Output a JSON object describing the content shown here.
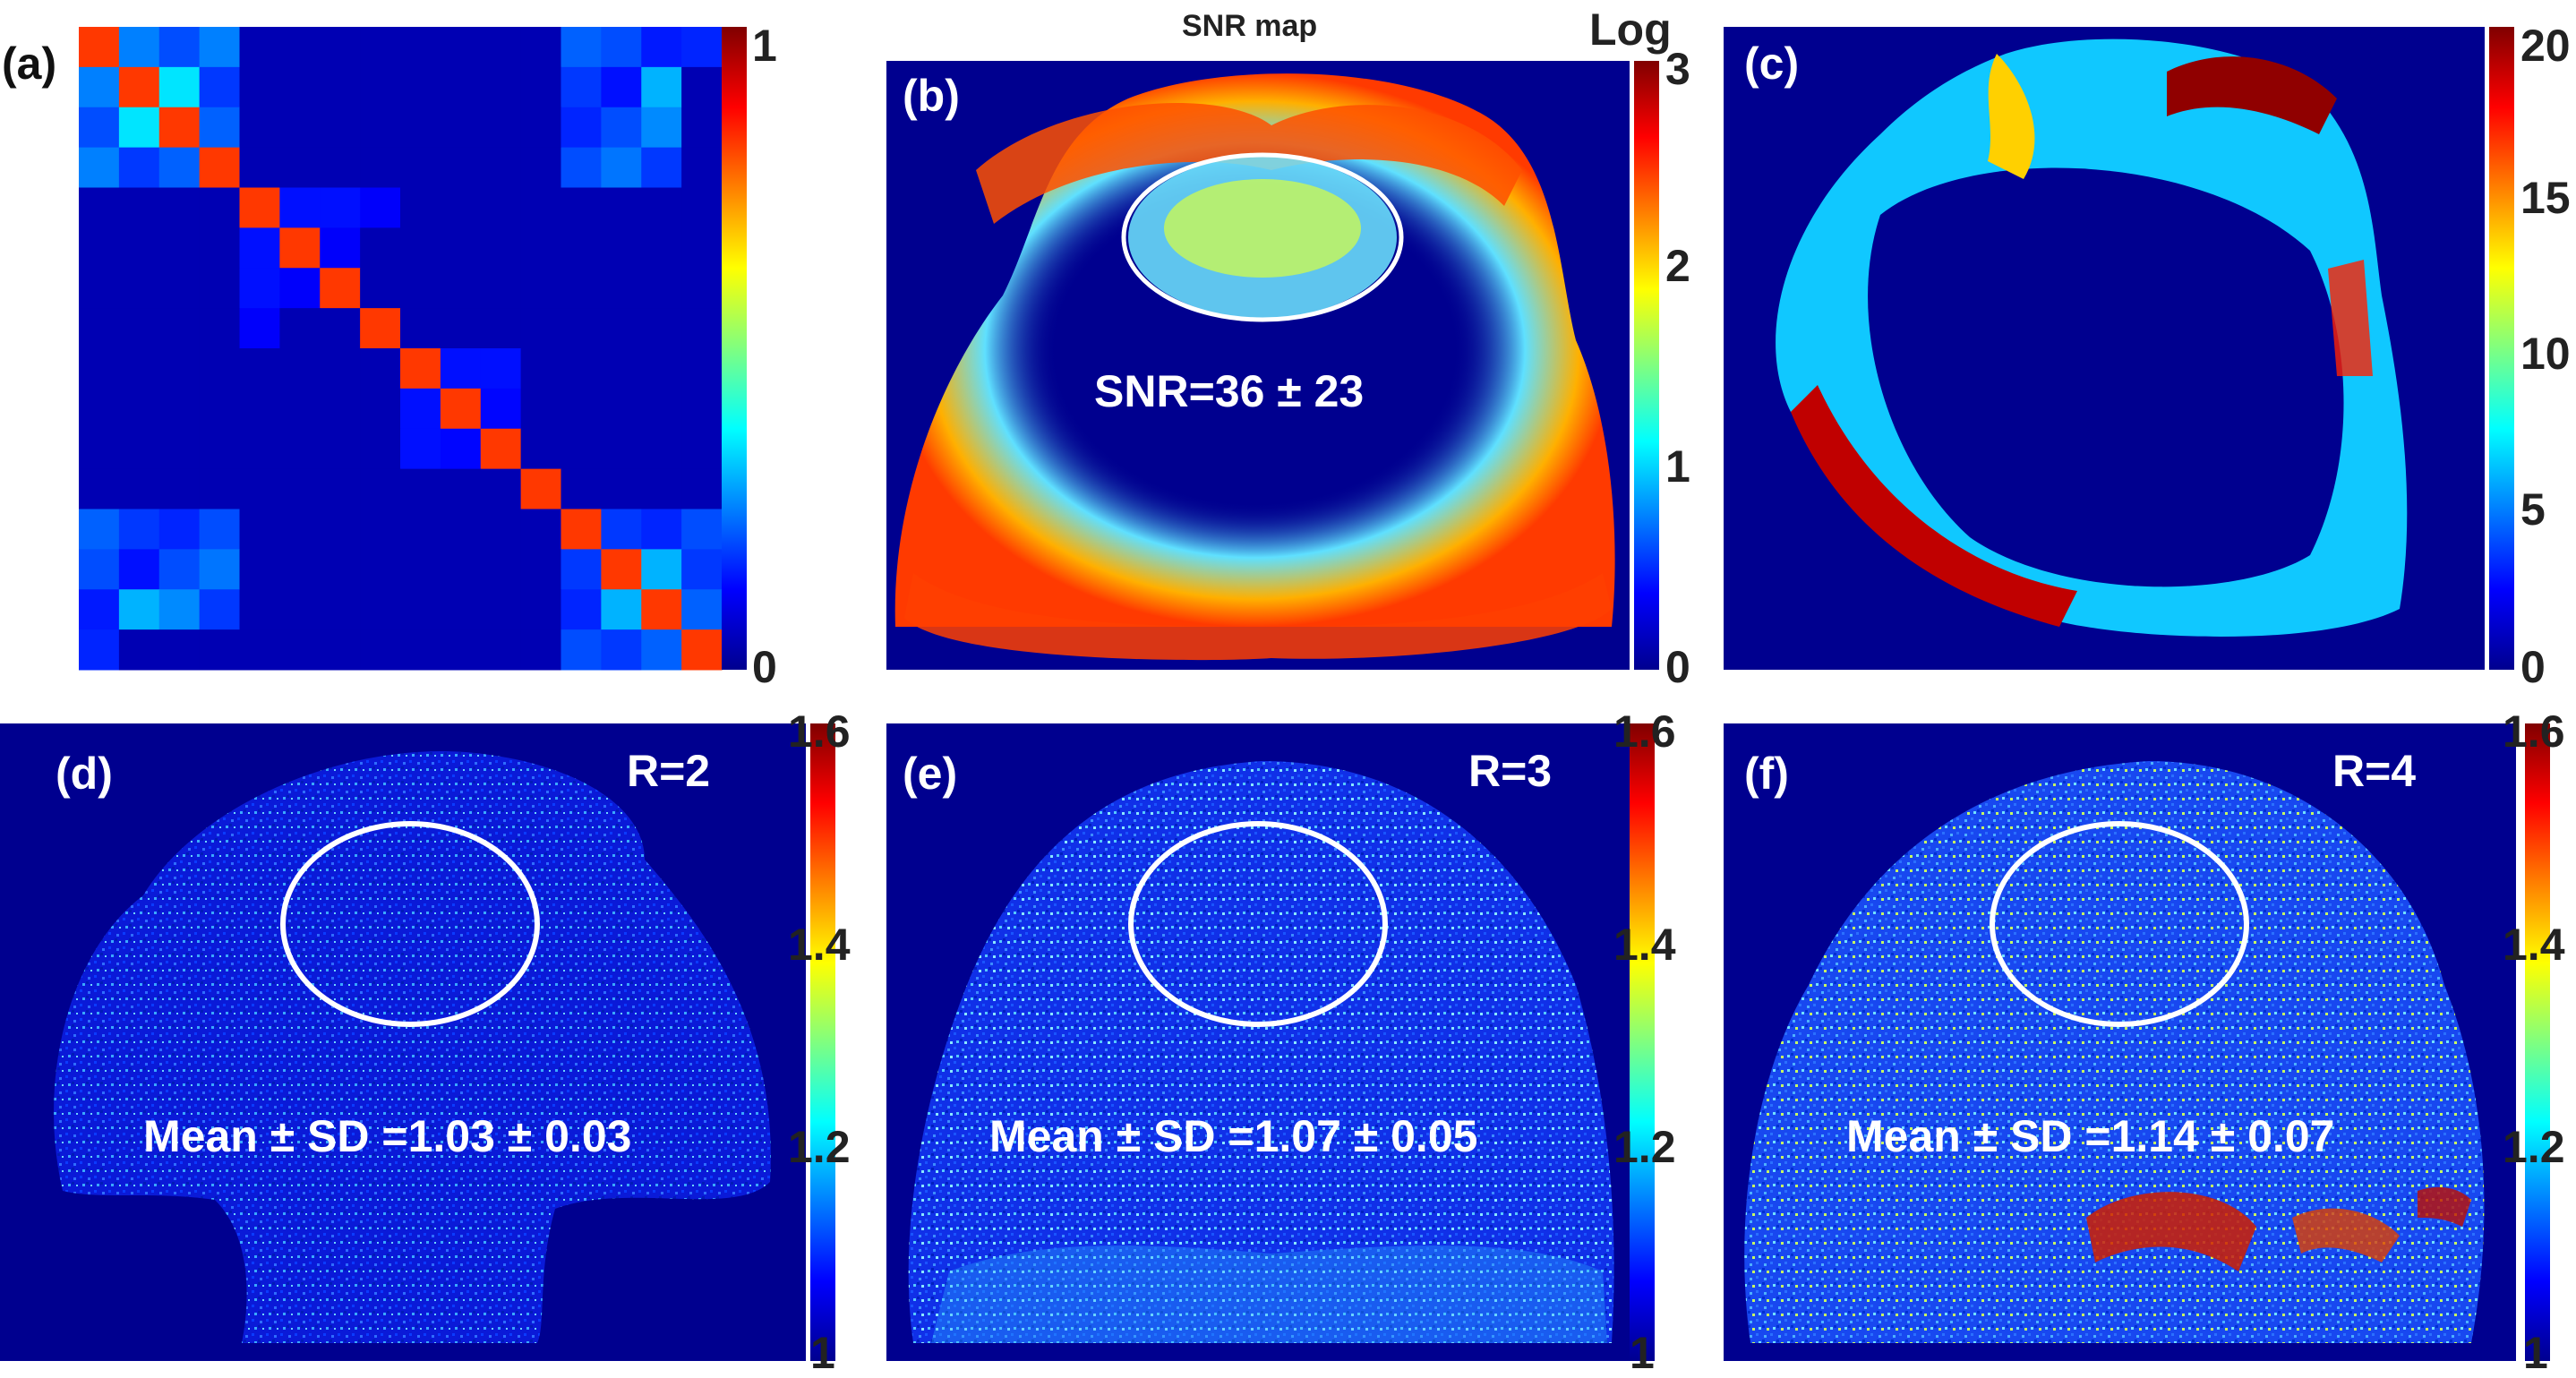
{
  "panels": {
    "a": {
      "label": "(a)",
      "cbar_ticks": [
        "1",
        "0"
      ]
    },
    "b": {
      "label": "(b)",
      "title": "SNR map",
      "cbar_title": "Log",
      "annotation": "SNR=36 ± 23",
      "cbar_ticks": [
        "3",
        "2",
        "1",
        "0"
      ]
    },
    "c": {
      "label": "(c)",
      "cbar_ticks": [
        "20",
        "15",
        "10",
        "5",
        "0"
      ]
    },
    "d": {
      "label": "(d)",
      "r_label": "R=2",
      "annotation": "Mean ± SD =1.03 ± 0.03",
      "cbar_ticks": [
        "1.6",
        "1.4",
        "1.2",
        "1"
      ]
    },
    "e": {
      "label": "(e)",
      "r_label": "R=3",
      "annotation": "Mean ± SD =1.07 ± 0.05",
      "cbar_ticks": [
        "1.6",
        "1.4",
        "1.2",
        "1"
      ]
    },
    "f": {
      "label": "(f)",
      "r_label": "R=4",
      "annotation": "Mean ± SD =1.14 ± 0.07",
      "cbar_ticks": [
        "1.6",
        "1.4",
        "1.2",
        "1"
      ]
    }
  },
  "colors": {
    "background_blue": "#00008f",
    "jet_red": "#800000",
    "jet_orange": "#ff5a00"
  }
}
